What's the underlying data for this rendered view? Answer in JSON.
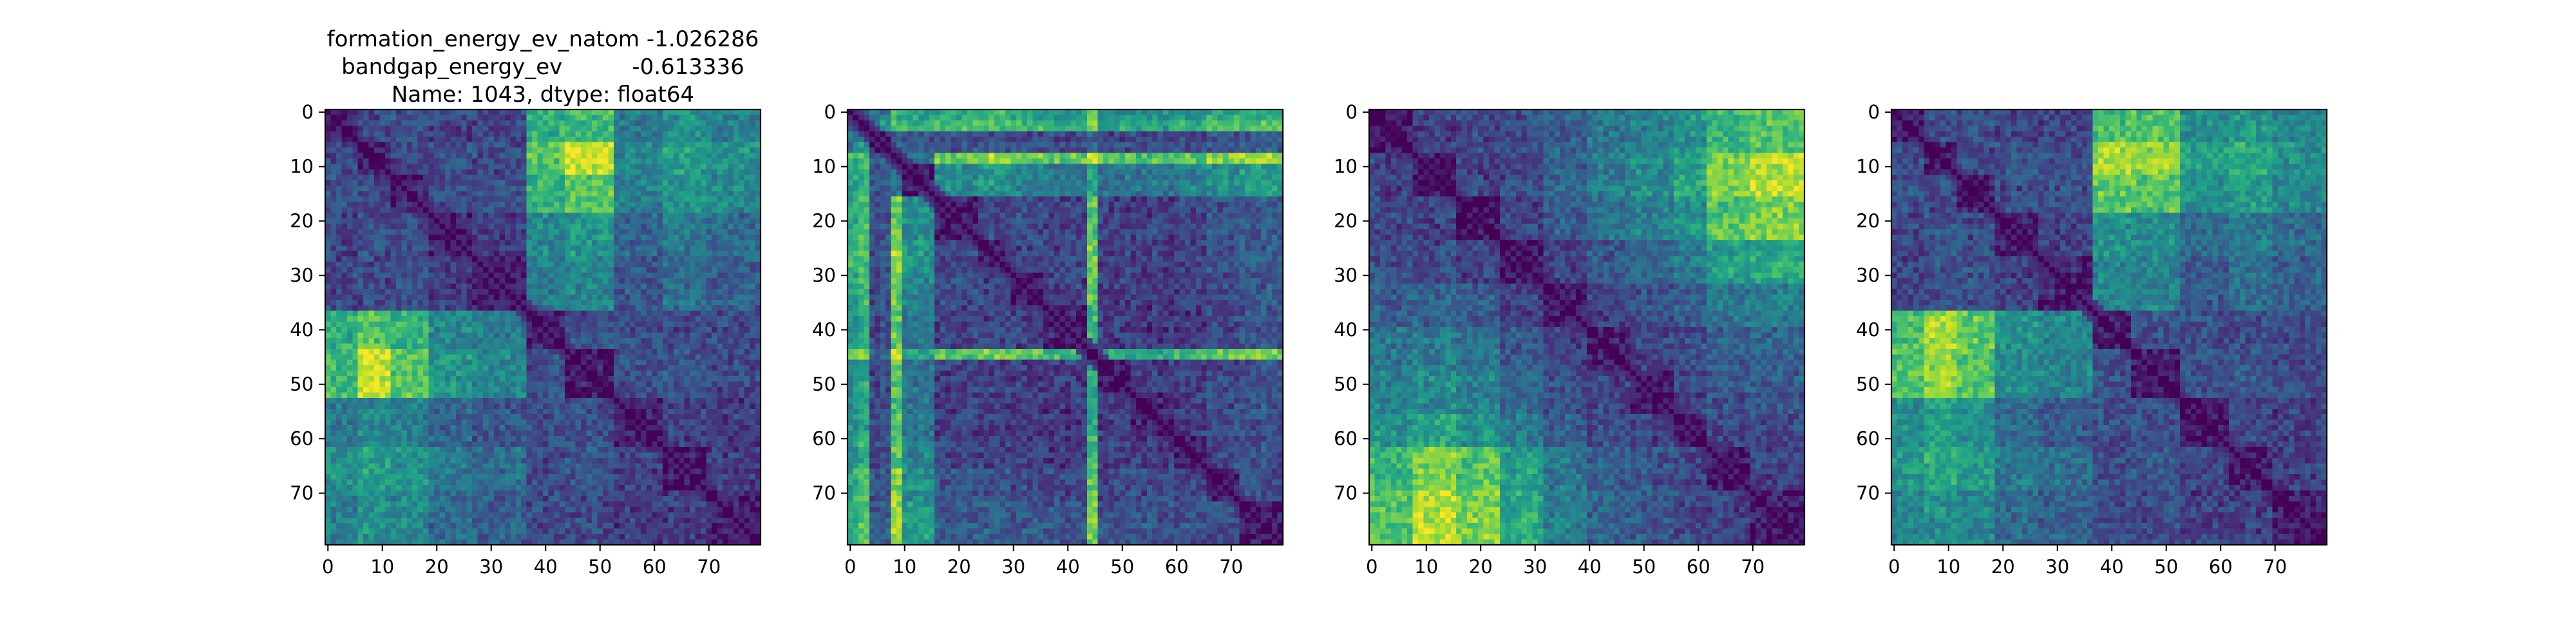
{
  "title_lines": [
    "formation_energy_ev_natom   -1.026286",
    "bandgap_energy_ev          -0.613336",
    "Name: 1043, dtype: float64"
  ],
  "colormap": {
    "name": "viridis",
    "stops": [
      "#440154",
      "#482878",
      "#3e4a89",
      "#31688e",
      "#26828e",
      "#1f9e89",
      "#35b779",
      "#6ece58",
      "#b5de2b",
      "#fde725"
    ]
  },
  "chart_data": [
    {
      "type": "heatmap",
      "title": "",
      "size": 80,
      "x_ticks": [
        0,
        10,
        20,
        30,
        40,
        50,
        60,
        70
      ],
      "y_ticks": [
        0,
        10,
        20,
        30,
        40,
        50,
        60,
        70
      ],
      "block_edges": [
        0,
        6,
        12,
        19,
        27,
        37,
        44,
        53,
        62,
        70,
        80
      ],
      "block_values": [
        [
          0.06,
          0.22,
          0.24,
          0.2,
          0.2,
          0.62,
          0.68,
          0.4,
          0.5,
          0.42
        ],
        [
          0.22,
          0.06,
          0.22,
          0.24,
          0.22,
          0.72,
          0.92,
          0.46,
          0.56,
          0.5
        ],
        [
          0.24,
          0.22,
          0.08,
          0.22,
          0.24,
          0.64,
          0.74,
          0.42,
          0.5,
          0.46
        ],
        [
          0.2,
          0.24,
          0.22,
          0.08,
          0.18,
          0.46,
          0.52,
          0.32,
          0.4,
          0.34
        ],
        [
          0.2,
          0.22,
          0.24,
          0.18,
          0.08,
          0.4,
          0.46,
          0.26,
          0.36,
          0.3
        ],
        [
          0.62,
          0.72,
          0.64,
          0.46,
          0.4,
          0.06,
          0.24,
          0.24,
          0.22,
          0.22
        ],
        [
          0.68,
          0.92,
          0.74,
          0.52,
          0.46,
          0.24,
          0.06,
          0.24,
          0.26,
          0.22
        ],
        [
          0.4,
          0.46,
          0.42,
          0.32,
          0.26,
          0.24,
          0.24,
          0.06,
          0.2,
          0.18
        ],
        [
          0.5,
          0.56,
          0.5,
          0.4,
          0.36,
          0.22,
          0.26,
          0.2,
          0.06,
          0.18
        ],
        [
          0.42,
          0.5,
          0.46,
          0.34,
          0.3,
          0.22,
          0.22,
          0.18,
          0.18,
          0.06
        ]
      ],
      "axis_range": [
        0,
        79
      ]
    },
    {
      "type": "heatmap",
      "title": "",
      "size": 80,
      "x_ticks": [
        0,
        10,
        20,
        30,
        40,
        50,
        60,
        70
      ],
      "y_ticks": [
        0,
        10,
        20,
        30,
        40,
        50,
        60,
        70
      ],
      "block_edges": [
        0,
        2,
        4,
        8,
        10,
        16,
        24,
        30,
        36,
        44,
        46,
        52,
        60,
        66,
        72,
        80
      ],
      "block_values": [
        [
          0.06,
          0.3,
          0.4,
          0.62,
          0.58,
          0.6,
          0.62,
          0.58,
          0.52,
          0.7,
          0.5,
          0.5,
          0.52,
          0.6,
          0.64
        ],
        [
          0.3,
          0.06,
          0.5,
          0.74,
          0.66,
          0.7,
          0.72,
          0.68,
          0.6,
          0.8,
          0.58,
          0.58,
          0.6,
          0.7,
          0.74
        ],
        [
          0.4,
          0.5,
          0.08,
          0.3,
          0.28,
          0.26,
          0.26,
          0.24,
          0.22,
          0.34,
          0.22,
          0.2,
          0.24,
          0.26,
          0.3
        ],
        [
          0.62,
          0.74,
          0.3,
          0.06,
          0.4,
          0.78,
          0.86,
          0.8,
          0.74,
          0.9,
          0.7,
          0.7,
          0.76,
          0.82,
          0.88
        ],
        [
          0.58,
          0.66,
          0.28,
          0.4,
          0.08,
          0.48,
          0.52,
          0.46,
          0.42,
          0.58,
          0.4,
          0.4,
          0.44,
          0.5,
          0.54
        ],
        [
          0.6,
          0.7,
          0.26,
          0.78,
          0.48,
          0.08,
          0.22,
          0.22,
          0.2,
          0.72,
          0.2,
          0.2,
          0.22,
          0.26,
          0.3
        ],
        [
          0.62,
          0.72,
          0.26,
          0.86,
          0.52,
          0.22,
          0.08,
          0.2,
          0.2,
          0.78,
          0.2,
          0.18,
          0.2,
          0.26,
          0.3
        ],
        [
          0.58,
          0.68,
          0.24,
          0.8,
          0.46,
          0.22,
          0.2,
          0.08,
          0.2,
          0.74,
          0.18,
          0.18,
          0.2,
          0.24,
          0.28
        ],
        [
          0.52,
          0.6,
          0.22,
          0.74,
          0.42,
          0.2,
          0.2,
          0.2,
          0.08,
          0.68,
          0.18,
          0.16,
          0.18,
          0.22,
          0.26
        ],
        [
          0.7,
          0.8,
          0.34,
          0.9,
          0.58,
          0.72,
          0.78,
          0.74,
          0.68,
          0.06,
          0.6,
          0.62,
          0.66,
          0.74,
          0.8
        ],
        [
          0.5,
          0.58,
          0.22,
          0.7,
          0.4,
          0.2,
          0.2,
          0.18,
          0.18,
          0.6,
          0.08,
          0.18,
          0.2,
          0.22,
          0.26
        ],
        [
          0.5,
          0.58,
          0.2,
          0.7,
          0.4,
          0.2,
          0.18,
          0.18,
          0.16,
          0.62,
          0.18,
          0.08,
          0.18,
          0.22,
          0.26
        ],
        [
          0.52,
          0.6,
          0.24,
          0.76,
          0.44,
          0.22,
          0.2,
          0.2,
          0.18,
          0.66,
          0.2,
          0.18,
          0.08,
          0.22,
          0.26
        ],
        [
          0.6,
          0.7,
          0.26,
          0.82,
          0.5,
          0.26,
          0.26,
          0.24,
          0.22,
          0.74,
          0.22,
          0.22,
          0.22,
          0.08,
          0.24
        ],
        [
          0.64,
          0.74,
          0.3,
          0.88,
          0.54,
          0.3,
          0.3,
          0.28,
          0.26,
          0.8,
          0.26,
          0.26,
          0.26,
          0.24,
          0.06
        ]
      ],
      "axis_range": [
        0,
        79
      ]
    },
    {
      "type": "heatmap",
      "title": "",
      "size": 80,
      "x_ticks": [
        0,
        10,
        20,
        30,
        40,
        50,
        60,
        70
      ],
      "y_ticks": [
        0,
        10,
        20,
        30,
        40,
        50,
        60,
        70
      ],
      "block_edges": [
        0,
        8,
        16,
        24,
        32,
        40,
        48,
        56,
        62,
        70,
        80
      ],
      "block_values": [
        [
          0.06,
          0.2,
          0.22,
          0.24,
          0.3,
          0.4,
          0.44,
          0.52,
          0.66,
          0.72
        ],
        [
          0.2,
          0.06,
          0.2,
          0.22,
          0.32,
          0.42,
          0.48,
          0.58,
          0.8,
          0.9
        ],
        [
          0.22,
          0.2,
          0.06,
          0.2,
          0.28,
          0.38,
          0.44,
          0.52,
          0.72,
          0.8
        ],
        [
          0.24,
          0.22,
          0.2,
          0.06,
          0.2,
          0.28,
          0.34,
          0.42,
          0.56,
          0.6
        ],
        [
          0.3,
          0.32,
          0.28,
          0.2,
          0.06,
          0.2,
          0.24,
          0.3,
          0.4,
          0.42
        ],
        [
          0.4,
          0.42,
          0.38,
          0.28,
          0.2,
          0.06,
          0.2,
          0.24,
          0.3,
          0.32
        ],
        [
          0.44,
          0.48,
          0.44,
          0.34,
          0.24,
          0.2,
          0.06,
          0.2,
          0.26,
          0.28
        ],
        [
          0.52,
          0.58,
          0.52,
          0.42,
          0.3,
          0.24,
          0.2,
          0.06,
          0.2,
          0.22
        ],
        [
          0.66,
          0.8,
          0.72,
          0.56,
          0.4,
          0.3,
          0.26,
          0.2,
          0.06,
          0.2
        ],
        [
          0.72,
          0.9,
          0.8,
          0.6,
          0.42,
          0.32,
          0.28,
          0.22,
          0.2,
          0.06
        ]
      ],
      "axis_range": [
        0,
        79
      ]
    },
    {
      "type": "heatmap",
      "title": "",
      "size": 80,
      "x_ticks": [
        0,
        10,
        20,
        30,
        40,
        50,
        60,
        70
      ],
      "y_ticks": [
        0,
        10,
        20,
        30,
        40,
        50,
        60,
        70
      ],
      "block_edges": [
        0,
        6,
        12,
        19,
        27,
        37,
        44,
        53,
        62,
        70,
        80
      ],
      "block_values": [
        [
          0.06,
          0.22,
          0.24,
          0.2,
          0.2,
          0.7,
          0.7,
          0.48,
          0.52,
          0.44
        ],
        [
          0.22,
          0.06,
          0.22,
          0.24,
          0.22,
          0.86,
          0.82,
          0.56,
          0.6,
          0.5
        ],
        [
          0.24,
          0.22,
          0.08,
          0.22,
          0.24,
          0.74,
          0.72,
          0.5,
          0.54,
          0.46
        ],
        [
          0.2,
          0.24,
          0.22,
          0.08,
          0.18,
          0.5,
          0.48,
          0.34,
          0.4,
          0.34
        ],
        [
          0.2,
          0.22,
          0.24,
          0.18,
          0.08,
          0.44,
          0.44,
          0.28,
          0.36,
          0.3
        ],
        [
          0.7,
          0.86,
          0.74,
          0.5,
          0.44,
          0.06,
          0.24,
          0.24,
          0.22,
          0.22
        ],
        [
          0.7,
          0.82,
          0.72,
          0.48,
          0.44,
          0.24,
          0.06,
          0.24,
          0.26,
          0.22
        ],
        [
          0.48,
          0.56,
          0.5,
          0.34,
          0.28,
          0.24,
          0.24,
          0.06,
          0.2,
          0.18
        ],
        [
          0.52,
          0.6,
          0.54,
          0.4,
          0.36,
          0.22,
          0.26,
          0.2,
          0.06,
          0.18
        ],
        [
          0.44,
          0.5,
          0.46,
          0.34,
          0.3,
          0.22,
          0.22,
          0.18,
          0.18,
          0.06
        ]
      ],
      "axis_range": [
        0,
        79
      ]
    }
  ]
}
